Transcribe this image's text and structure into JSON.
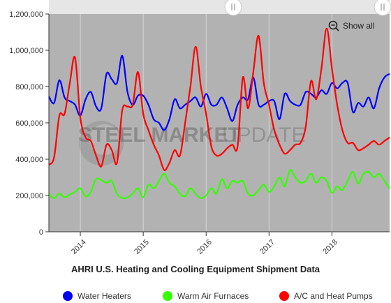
{
  "title": "AHRI U.S. Heating and Cooling Equipment Shipment Data",
  "show_all_label": "Show all",
  "watermark": {
    "text_left": "STEEL MARKET",
    "text_right": "UPDATE"
  },
  "colors": {
    "plot_bg": "#b2b2b2",
    "water_heaters": "#0000ff",
    "warm_air_furnaces": "#33ff00",
    "ac_heat_pumps": "#ff0000"
  },
  "chart_data": {
    "type": "line",
    "title": "AHRI U.S. Heating and Cooling Equipment Shipment Data",
    "xlabel": "",
    "ylabel": "",
    "ylim": [
      0,
      1200000
    ],
    "y_ticks": [
      "0",
      "200,000",
      "400,000",
      "600,000",
      "800,000",
      "1,000,000",
      "1,200,000"
    ],
    "y_tick_values": [
      0,
      200000,
      400000,
      600000,
      800000,
      1000000,
      1200000
    ],
    "x_range": [
      "2013-07",
      "2018-12"
    ],
    "x_ticks": [
      "2014",
      "2015",
      "2016",
      "2017",
      "2018"
    ],
    "x_tick_positions": [
      "2014-01",
      "2015-01",
      "2016-01",
      "2017-01",
      "2018-01"
    ],
    "grid": "vertical",
    "legend_position": "bottom",
    "x": [
      "2013-07",
      "2013-08",
      "2013-09",
      "2013-10",
      "2013-11",
      "2013-12",
      "2014-01",
      "2014-02",
      "2014-03",
      "2014-04",
      "2014-05",
      "2014-06",
      "2014-07",
      "2014-08",
      "2014-09",
      "2014-10",
      "2014-11",
      "2014-12",
      "2015-01",
      "2015-02",
      "2015-03",
      "2015-04",
      "2015-05",
      "2015-06",
      "2015-07",
      "2015-08",
      "2015-09",
      "2015-10",
      "2015-11",
      "2015-12",
      "2016-01",
      "2016-02",
      "2016-03",
      "2016-04",
      "2016-05",
      "2016-06",
      "2016-07",
      "2016-08",
      "2016-09",
      "2016-10",
      "2016-11",
      "2016-12",
      "2017-01",
      "2017-02",
      "2017-03",
      "2017-04",
      "2017-05",
      "2017-06",
      "2017-07",
      "2017-08",
      "2017-09",
      "2017-10",
      "2017-11",
      "2017-12",
      "2018-01",
      "2018-02",
      "2018-03",
      "2018-04",
      "2018-05",
      "2018-06",
      "2018-07",
      "2018-08",
      "2018-09",
      "2018-10",
      "2018-11",
      "2018-12"
    ],
    "series": [
      {
        "name": "Water Heaters",
        "color": "#0000ff",
        "values": [
          745000,
          710000,
          835000,
          740000,
          720000,
          700000,
          640000,
          730000,
          770000,
          690000,
          680000,
          870000,
          840000,
          820000,
          970000,
          770000,
          700000,
          750000,
          750000,
          700000,
          620000,
          600000,
          560000,
          620000,
          730000,
          680000,
          700000,
          720000,
          740000,
          690000,
          760000,
          700000,
          700000,
          740000,
          680000,
          610000,
          700000,
          740000,
          730000,
          850000,
          700000,
          700000,
          720000,
          720000,
          620000,
          760000,
          720000,
          700000,
          700000,
          770000,
          760000,
          740000,
          780000,
          760000,
          820000,
          790000,
          820000,
          820000,
          660000,
          710000,
          690000,
          740000,
          680000,
          790000,
          850000,
          870000
        ]
      },
      {
        "name": "Warm Air Furnaces",
        "color": "#33ff00",
        "values": [
          210000,
          185000,
          210000,
          190000,
          205000,
          220000,
          240000,
          195000,
          220000,
          290000,
          285000,
          270000,
          280000,
          210000,
          185000,
          190000,
          210000,
          240000,
          190000,
          260000,
          240000,
          280000,
          320000,
          270000,
          250000,
          210000,
          195000,
          240000,
          210000,
          185000,
          200000,
          240000,
          210000,
          290000,
          240000,
          280000,
          270000,
          280000,
          210000,
          200000,
          230000,
          260000,
          220000,
          250000,
          300000,
          250000,
          340000,
          300000,
          270000,
          280000,
          320000,
          270000,
          300000,
          280000,
          215000,
          250000,
          230000,
          280000,
          330000,
          265000,
          320000,
          330000,
          300000,
          320000,
          280000,
          240000
        ]
      },
      {
        "name": "A/C and Heat Pumps",
        "color": "#ff0000",
        "values": [
          370000,
          410000,
          640000,
          650000,
          820000,
          960000,
          630000,
          520000,
          500000,
          420000,
          360000,
          480000,
          450000,
          380000,
          670000,
          690000,
          700000,
          880000,
          650000,
          560000,
          480000,
          420000,
          340000,
          380000,
          450000,
          420000,
          600000,
          800000,
          1020000,
          800000,
          650000,
          470000,
          420000,
          430000,
          460000,
          480000,
          470000,
          850000,
          680000,
          880000,
          1080000,
          820000,
          700000,
          560000,
          480000,
          430000,
          450000,
          480000,
          490000,
          580000,
          830000,
          730000,
          900000,
          1120000,
          900000,
          700000,
          560000,
          490000,
          490000,
          450000,
          460000,
          480000,
          500000,
          480000,
          500000,
          520000
        ]
      }
    ]
  }
}
